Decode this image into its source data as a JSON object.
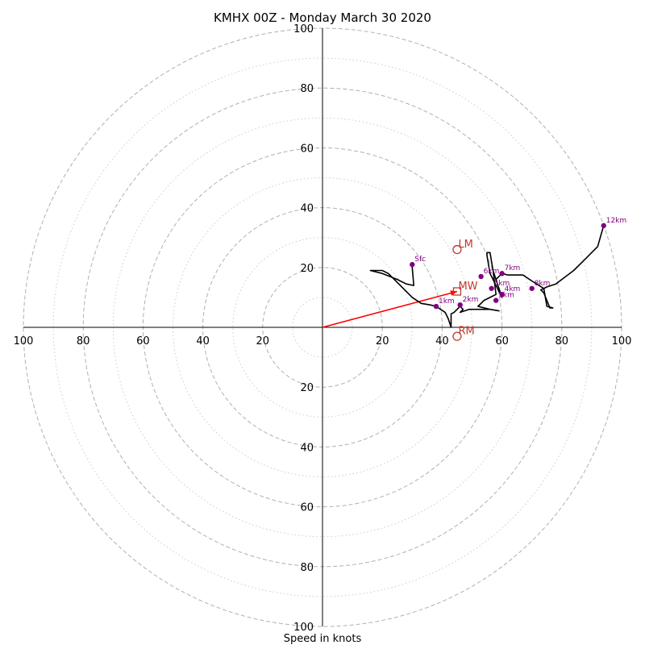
{
  "chart_data": {
    "type": "line",
    "title": "KMHX 00Z - Monday March 30 2020",
    "xlabel": "Speed in knots",
    "xlim": [
      -100,
      100
    ],
    "ylim": [
      -100,
      100
    ],
    "grid": true,
    "ring_values": [
      20,
      40,
      60,
      80,
      100
    ],
    "minor_ring_values": [
      10,
      30,
      50,
      70,
      90
    ],
    "tick_labels": {
      "x_left": [
        "100",
        "80",
        "60",
        "40",
        "20"
      ],
      "x_right": [
        "20",
        "40",
        "60",
        "80",
        "100"
      ],
      "y_top": [
        "100",
        "80",
        "60",
        "40",
        "20"
      ],
      "y_bottom": [
        "20",
        "40",
        "60",
        "80",
        "100"
      ]
    },
    "hodograph": {
      "name": "",
      "u": [
        30,
        30,
        30.5,
        28,
        25,
        20,
        16,
        20,
        22,
        24,
        27,
        30,
        33,
        36,
        38,
        41,
        42,
        43,
        43,
        44,
        46,
        47,
        46,
        49,
        52,
        56,
        59,
        56,
        52,
        54,
        56,
        58,
        57,
        60,
        58,
        56,
        55,
        55,
        56,
        57,
        58,
        60,
        62,
        63,
        67,
        70,
        74,
        75,
        77,
        76,
        74,
        73,
        75,
        78,
        80,
        84,
        88,
        92,
        94
      ],
      "v": [
        21,
        20,
        14,
        14.5,
        16,
        18,
        19,
        19,
        18,
        16,
        13,
        10,
        8,
        7.5,
        7,
        5,
        3,
        0,
        4.5,
        5,
        7,
        6,
        5,
        6,
        6,
        6,
        5.5,
        6,
        7,
        9,
        10,
        11,
        19,
        10,
        14,
        18,
        24,
        25,
        25,
        19,
        16,
        18,
        17.5,
        17.5,
        17.5,
        15.5,
        13,
        7,
        6.5,
        6.5,
        11.5,
        12.5,
        13.5,
        14.5,
        16,
        19,
        23,
        27,
        34
      ]
    },
    "levels": [
      {
        "label": "Sfc",
        "u": 30,
        "v": 21
      },
      {
        "label": "1km",
        "u": 38,
        "v": 7
      },
      {
        "label": "2km",
        "u": 46,
        "v": 7.5
      },
      {
        "label": "3km",
        "u": 58,
        "v": 9
      },
      {
        "label": "4km",
        "u": 60,
        "v": 11
      },
      {
        "label": "5km",
        "u": 56.5,
        "v": 13
      },
      {
        "label": "6km",
        "u": 53,
        "v": 17
      },
      {
        "label": "7km",
        "u": 60,
        "v": 18
      },
      {
        "label": "8km",
        "u": 70,
        "v": 13
      },
      {
        "label": "12km",
        "u": 94,
        "v": 34
      }
    ],
    "storm_motion": {
      "mean_wind": {
        "label": "MW",
        "u": 45,
        "v": 12
      },
      "left_mover": {
        "label": "LM",
        "u": 45,
        "v": 26
      },
      "right_mover": {
        "label": "RM",
        "u": 45,
        "v": -3
      },
      "vector_color": "#ff0000"
    },
    "colors": {
      "hodograph_line": "#000000",
      "level_marker": "#800080",
      "storm_marker": "#c0392b",
      "major_grid": "#b0b0b0",
      "minor_grid": "#cccccc",
      "axes": "#000000"
    }
  }
}
